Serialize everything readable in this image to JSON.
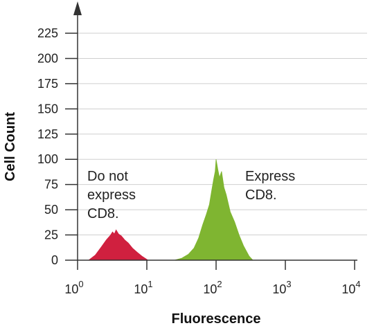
{
  "chart_data": {
    "type": "area",
    "xlabel": "Fluorescence",
    "ylabel": "Cell Count",
    "x_scale": "log10",
    "xlim": [
      1,
      10000
    ],
    "ylim": [
      0,
      225
    ],
    "x_ticks": [
      {
        "base": "10",
        "exp": "0",
        "value": 1
      },
      {
        "base": "10",
        "exp": "1",
        "value": 10
      },
      {
        "base": "10",
        "exp": "2",
        "value": 100
      },
      {
        "base": "10",
        "exp": "3",
        "value": 1000
      },
      {
        "base": "10",
        "exp": "4",
        "value": 10000
      }
    ],
    "y_ticks": [
      "0",
      "25",
      "50",
      "75",
      "100",
      "125",
      "150",
      "175",
      "200",
      "225"
    ],
    "grid": "horizontal",
    "series": [
      {
        "color": "#d0203f",
        "x": [
          1.45,
          1.8,
          2.2,
          2.6,
          3.0,
          3.2,
          3.4,
          3.6,
          3.9,
          4.3,
          4.8,
          5.4,
          6.2,
          7.2,
          8.5,
          10.4
        ],
        "y": [
          0,
          5,
          13,
          20,
          25,
          28,
          26,
          30,
          26,
          24,
          20,
          17,
          12,
          8,
          4,
          0
        ]
      },
      {
        "color": "#7fb531",
        "x": [
          25,
          32,
          40,
          48,
          56,
          64,
          72,
          80,
          86,
          92,
          97,
          100,
          106,
          112,
          120,
          130,
          140,
          160,
          185,
          215,
          250,
          300,
          340
        ],
        "y": [
          0,
          2,
          6,
          12,
          22,
          35,
          45,
          55,
          68,
          80,
          88,
          100,
          90,
          82,
          88,
          72,
          65,
          48,
          38,
          25,
          14,
          4,
          0
        ]
      }
    ],
    "annotations": [
      {
        "lines": [
          "Do not",
          "express",
          "CD8."
        ]
      },
      {
        "lines": [
          "Express",
          "CD8."
        ]
      }
    ]
  }
}
